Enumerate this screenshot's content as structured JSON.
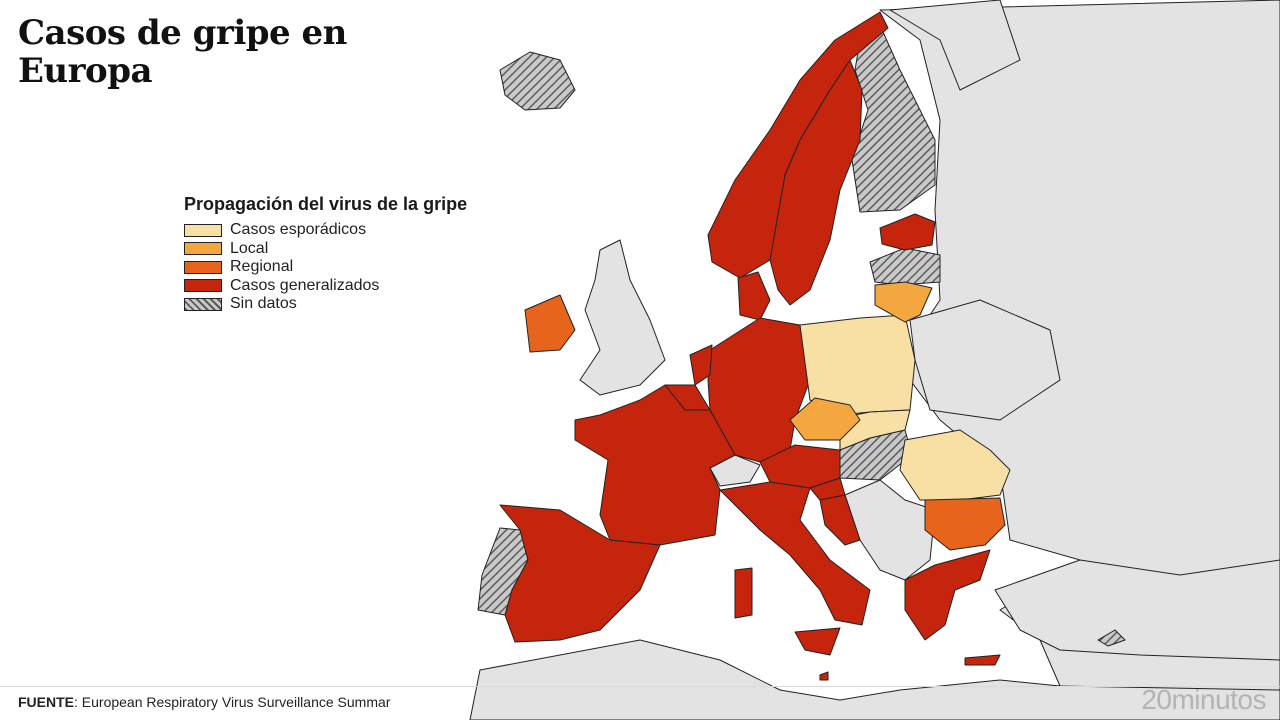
{
  "title": "Casos de gripe en Europa",
  "legend": {
    "title": "Propagación del virus de la gripe",
    "items": [
      {
        "label": "Casos esporádicos",
        "color": "#f8dfa3"
      },
      {
        "label": "Local",
        "color": "#f3a73e"
      },
      {
        "label": "Regional",
        "color": "#e6641c"
      },
      {
        "label": "Casos generalizados",
        "color": "#c4250c"
      },
      {
        "label": "Sin datos",
        "color": "hatch"
      }
    ]
  },
  "colors": {
    "sporadic": "#f8dfa3",
    "local": "#f3a73e",
    "regional": "#e6641c",
    "widespread": "#c4250c",
    "no_data_hatch": "#8a8a8a",
    "non_reporting": "#e3e3e3"
  },
  "footer": {
    "source_label": "FUENTE",
    "source_text": ": European Respiratory Virus Surveillance Summar",
    "brand": "20minutos"
  }
}
